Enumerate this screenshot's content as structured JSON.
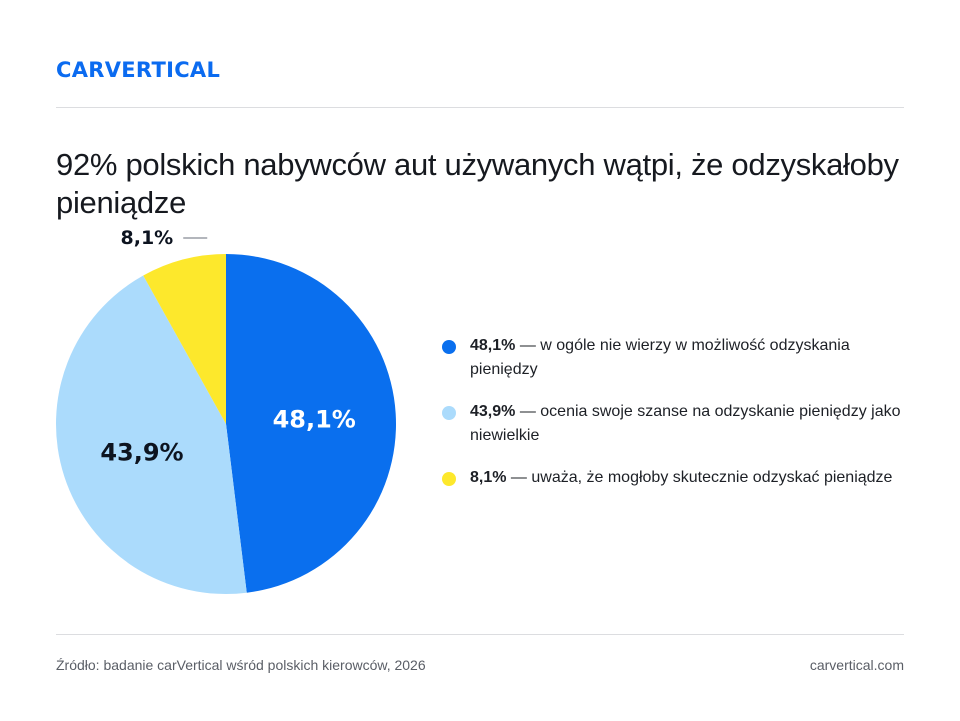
{
  "brand": {
    "logo_text": "CARVERTICAL",
    "logo_color": "#0b6bf0"
  },
  "title": "92% polskich nabywców aut używanych wątpi, że odzyskałoby pieniądze",
  "chart_data": {
    "type": "pie",
    "start_angle_deg": 0,
    "direction": "clockwise",
    "slices": [
      {
        "value": 48.1,
        "label": "48,1%",
        "color": "#0a6fee",
        "label_color": "#ffffff",
        "description": "w ogóle nie wierzy w możliwość odzyskania pieniędzy"
      },
      {
        "value": 43.9,
        "label": "43,9%",
        "color": "#abdbfc",
        "label_color": "#0d1420",
        "description": "ocenia swoje szanse na odzyskanie pieniędzy jako niewielkie"
      },
      {
        "value": 8.1,
        "label": "8,1%",
        "color": "#fde82c",
        "label_color": "#0d1420",
        "description": "uważa, że mogłoby skutecznie odzyskać pieniądze"
      }
    ],
    "legend_placement": "right"
  },
  "legend": {
    "separator": " — "
  },
  "footer": {
    "source": "Źródło: badanie carVertical wśród polskich kierowców, 2026",
    "site": "carvertical.com"
  }
}
